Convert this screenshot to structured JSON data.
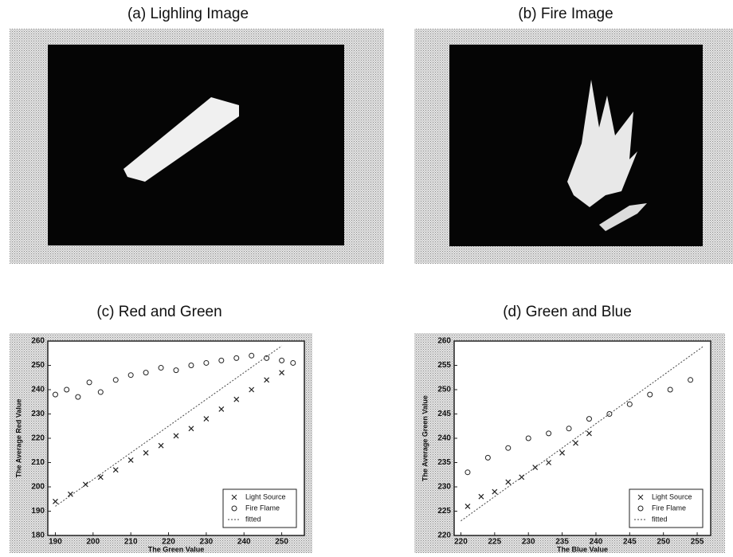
{
  "panels": [
    {
      "title": "(a) Lighling Image"
    },
    {
      "title": "(b) Fire Image"
    }
  ],
  "chart_data": [
    {
      "type": "scatter",
      "title": "(c) Red and Green",
      "x_label": "The Green Value",
      "y_label": "The Average Red Value",
      "xlim": [
        188,
        256
      ],
      "ylim": [
        180,
        260
      ],
      "xticks": [
        190,
        200,
        210,
        220,
        230,
        240,
        250
      ],
      "yticks": [
        180,
        190,
        200,
        210,
        220,
        230,
        240,
        250,
        260
      ],
      "legend": "lower right",
      "series": [
        {
          "name": "Light Source",
          "marker": "x",
          "color": "#222",
          "x": [
            190,
            194,
            198,
            202,
            206,
            210,
            214,
            218,
            222,
            226,
            230,
            234,
            238,
            242,
            246,
            250
          ],
          "values": [
            194,
            197,
            201,
            204,
            207,
            211,
            214,
            217,
            221,
            224,
            228,
            232,
            236,
            240,
            244,
            247
          ]
        },
        {
          "name": "Fire Flame",
          "marker": "o",
          "color": "#222",
          "x": [
            190,
            193,
            196,
            199,
            202,
            206,
            210,
            214,
            218,
            222,
            226,
            230,
            234,
            238,
            242,
            246,
            250,
            253
          ],
          "values": [
            238,
            240,
            237,
            243,
            239,
            244,
            246,
            247,
            249,
            248,
            250,
            251,
            252,
            253,
            254,
            253,
            252,
            251
          ]
        },
        {
          "name": "fitted",
          "marker": "line",
          "color": "#444",
          "x": [
            190,
            250
          ],
          "values": [
            192,
            258
          ]
        }
      ]
    },
    {
      "type": "scatter",
      "title": "(d) Green and Blue",
      "x_label": "The Blue Value",
      "y_label": "The Average Green Value",
      "xlim": [
        219,
        257
      ],
      "ylim": [
        220,
        260
      ],
      "xticks": [
        220,
        225,
        230,
        235,
        240,
        245,
        250,
        255
      ],
      "yticks": [
        220,
        225,
        230,
        235,
        240,
        245,
        250,
        255,
        260
      ],
      "legend": "lower right",
      "series": [
        {
          "name": "Light Source",
          "marker": "x",
          "color": "#222",
          "x": [
            221,
            223,
            225,
            227,
            229,
            231,
            233,
            235,
            237,
            239
          ],
          "values": [
            226,
            228,
            229,
            231,
            232,
            234,
            235,
            237,
            239,
            241
          ]
        },
        {
          "name": "Fire Flame",
          "marker": "o",
          "color": "#222",
          "x": [
            221,
            224,
            227,
            230,
            233,
            236,
            239,
            242,
            245,
            248,
            251,
            254
          ],
          "values": [
            233,
            236,
            238,
            240,
            241,
            242,
            244,
            245,
            247,
            249,
            250,
            252
          ]
        },
        {
          "name": "fitted",
          "marker": "line",
          "color": "#444",
          "x": [
            220,
            256
          ],
          "values": [
            223,
            259
          ]
        }
      ]
    }
  ]
}
